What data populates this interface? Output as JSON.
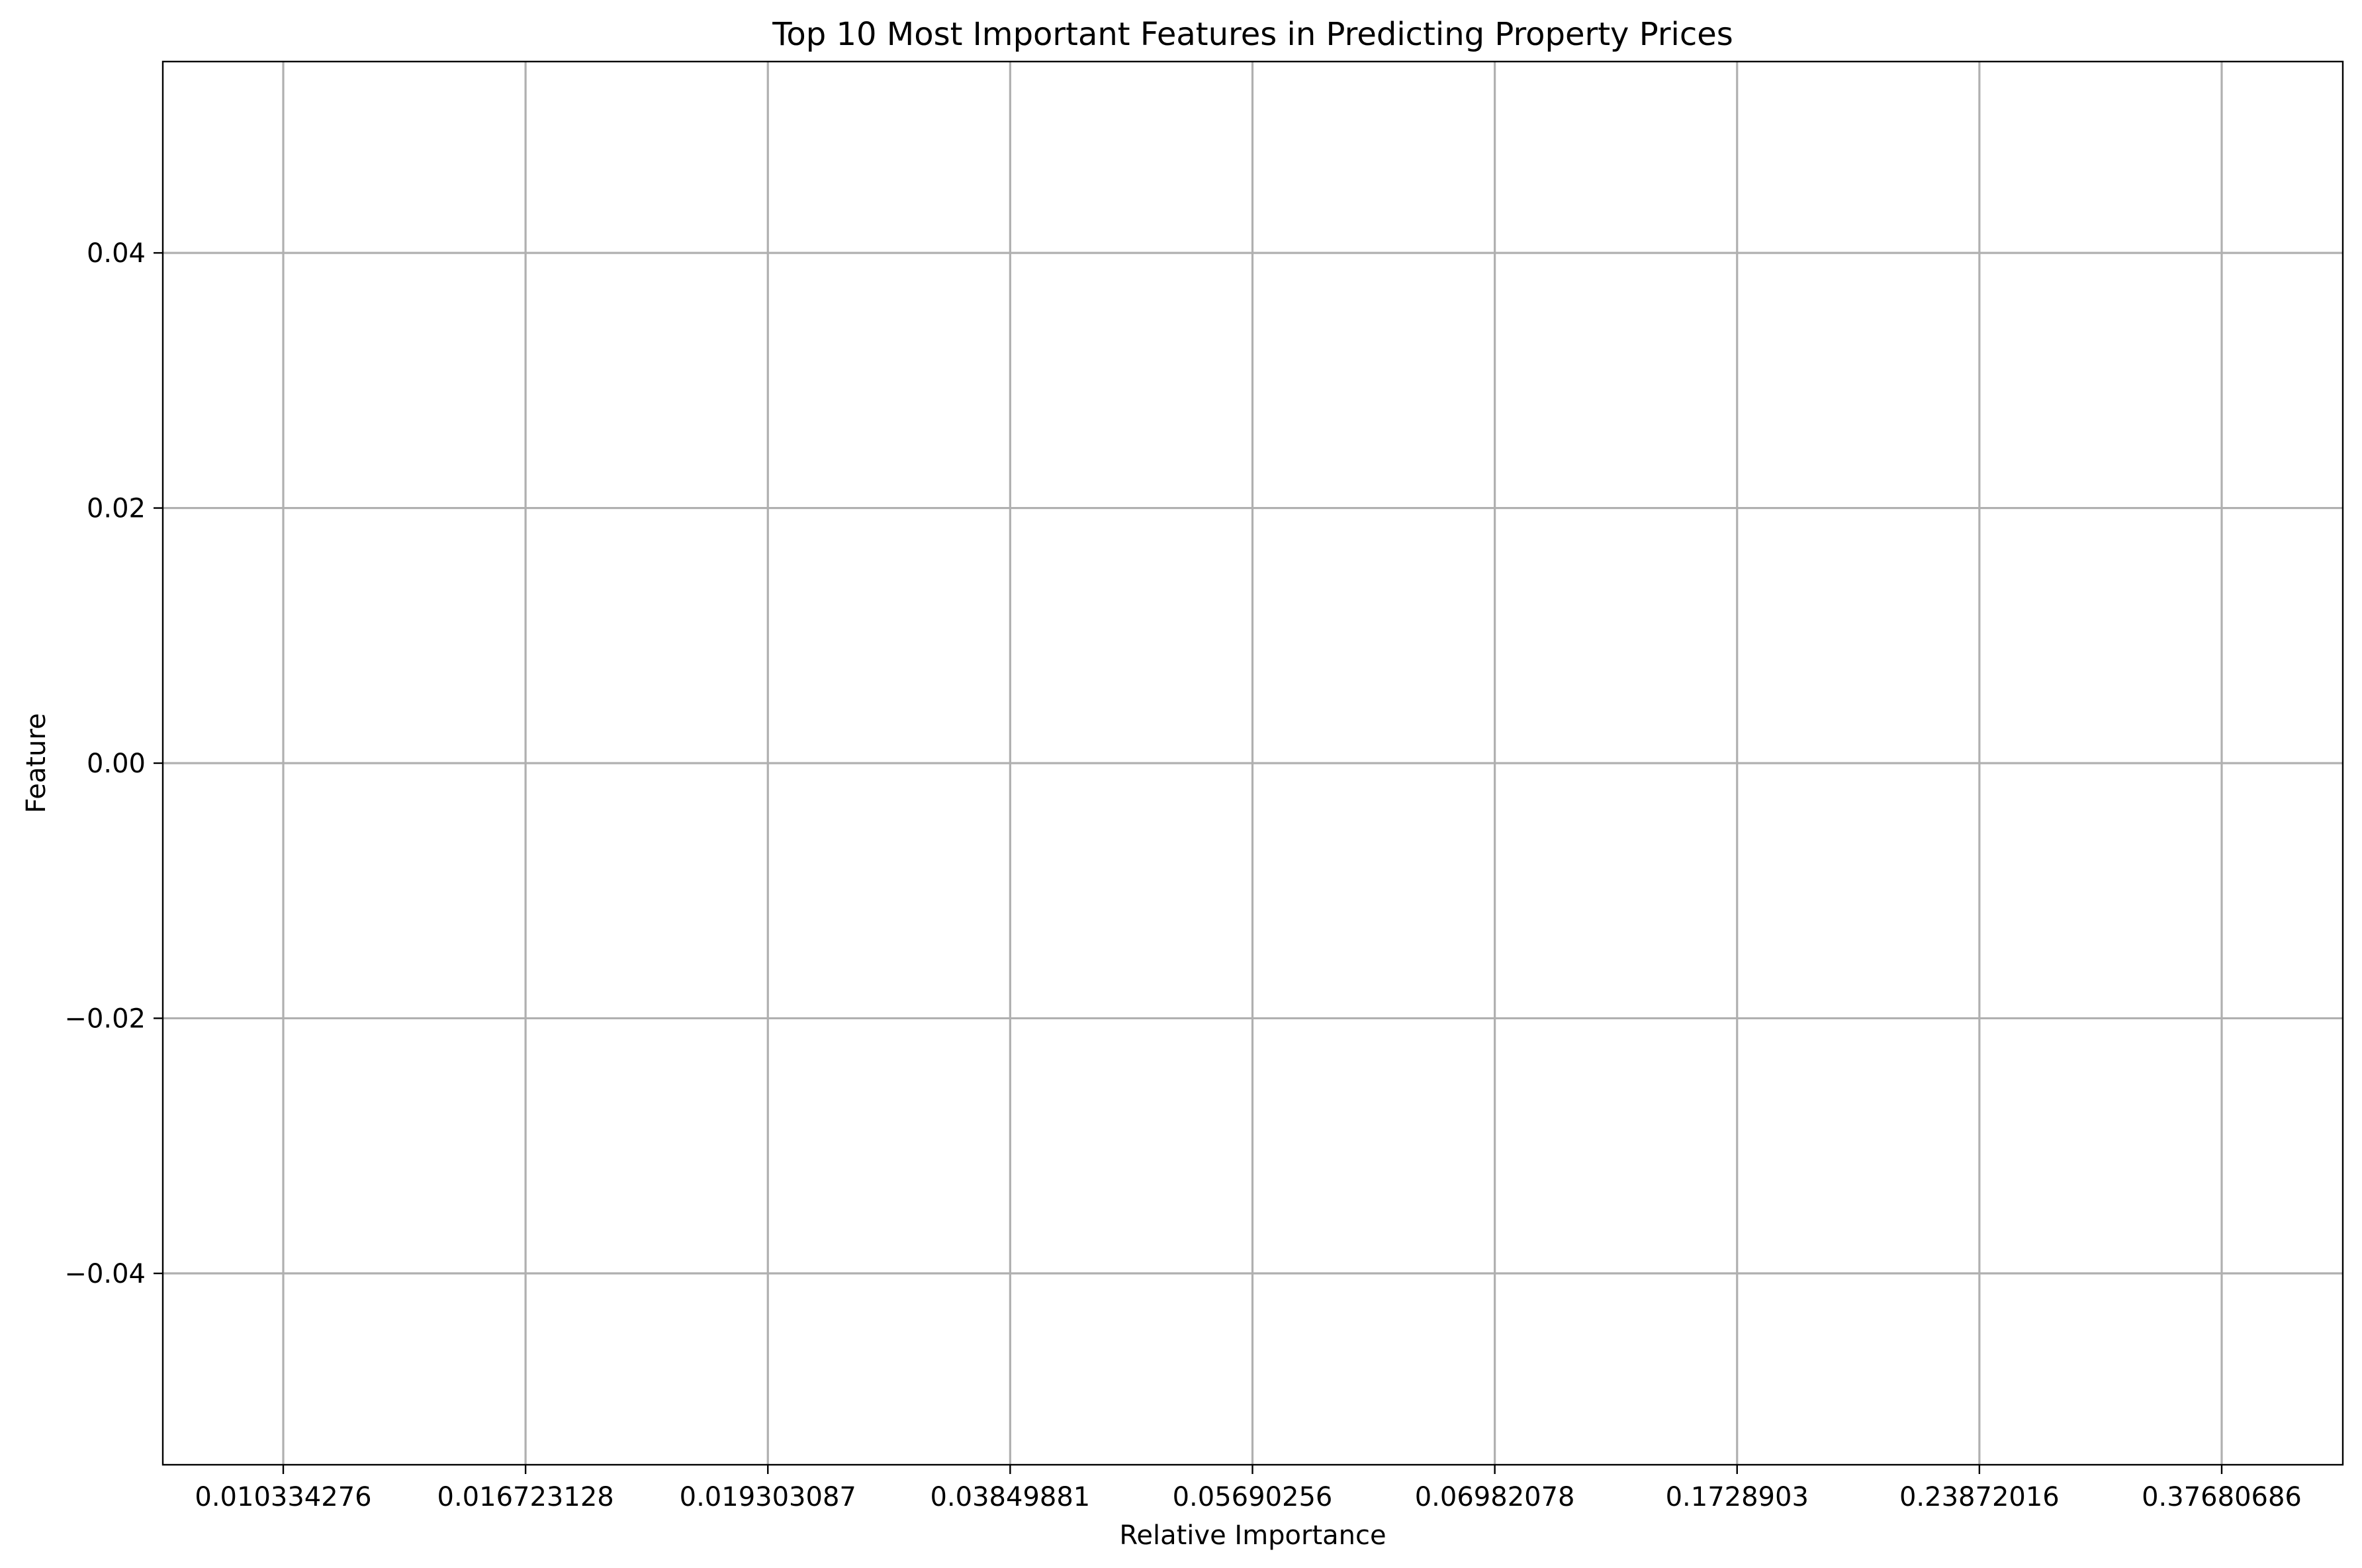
{
  "chart_data": {
    "type": "bar",
    "orientation": "horizontal",
    "title": "Top 10 Most Important Features in Predicting Property Prices",
    "xlabel": "Relative Importance",
    "ylabel": "Feature",
    "x_tick_labels": [
      "0.010334276",
      "0.016723128",
      "0.019303087",
      "0.03849881",
      "0.05690256",
      "0.06982078",
      "0.1728903",
      "0.23872016",
      "0.37680686"
    ],
    "y_ticks": [
      0.04,
      0.02,
      0.0,
      -0.02,
      -0.04
    ],
    "y_tick_labels": [
      "0.04",
      "0.02",
      "0.00",
      "−0.02",
      "−0.04"
    ],
    "ylim": [
      -0.055,
      0.055
    ],
    "grid": true,
    "series": [],
    "colors": {
      "grid": "#b0b0b0",
      "axis": "#000000",
      "background": "#ffffff"
    }
  }
}
